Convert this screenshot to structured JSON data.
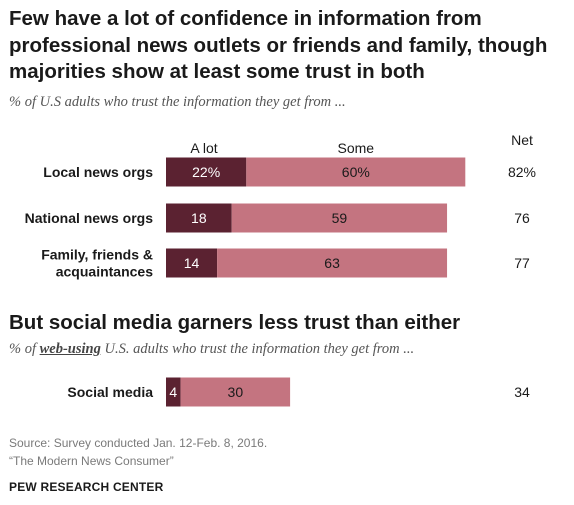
{
  "title": "Few have a lot of confidence in information from professional news outlets or friends and family, though majorities show at least some trust in both",
  "subtitle": "% of U.S adults who trust the information they get from ...",
  "section2_title": "But social media garners less trust than either",
  "subtitle2_prefix": "% of ",
  "subtitle2_emph": "web-using",
  "subtitle2_suffix": " U.S. adults who trust the information they get from ...",
  "colors": {
    "a_lot": "#5b2231",
    "some": "#c47480",
    "label": "#ffffff"
  },
  "chart_data": [
    {
      "type": "bar",
      "orientation": "horizontal",
      "stacked": true,
      "legend": [
        "A lot",
        "Some"
      ],
      "net_header": "Net",
      "categories": [
        "Local news orgs",
        "National news orgs",
        "Family, friends & acquaintances"
      ],
      "category_lines": [
        [
          "Local news orgs"
        ],
        [
          "National news orgs"
        ],
        [
          "Family, friends &",
          "acquaintances"
        ]
      ],
      "series": [
        {
          "name": "A lot",
          "values": [
            22,
            18,
            14
          ],
          "labels": [
            "22%",
            "18",
            "14"
          ]
        },
        {
          "name": "Some",
          "values": [
            60,
            59,
            63
          ],
          "labels": [
            "60%",
            "59",
            "63"
          ]
        }
      ],
      "net": [
        "82%",
        "76",
        "77"
      ]
    },
    {
      "type": "bar",
      "orientation": "horizontal",
      "stacked": true,
      "categories": [
        "Social media"
      ],
      "category_lines": [
        [
          "Social media"
        ]
      ],
      "series": [
        {
          "name": "A lot",
          "values": [
            4
          ],
          "labels": [
            "4"
          ]
        },
        {
          "name": "Some",
          "values": [
            30
          ],
          "labels": [
            "30"
          ]
        }
      ],
      "net": [
        "34"
      ]
    }
  ],
  "source_line1": "Source: Survey conducted Jan. 12-Feb. 8, 2016.",
  "source_line2": "“The Modern News Consumer”",
  "organization": "PEW RESEARCH CENTER"
}
